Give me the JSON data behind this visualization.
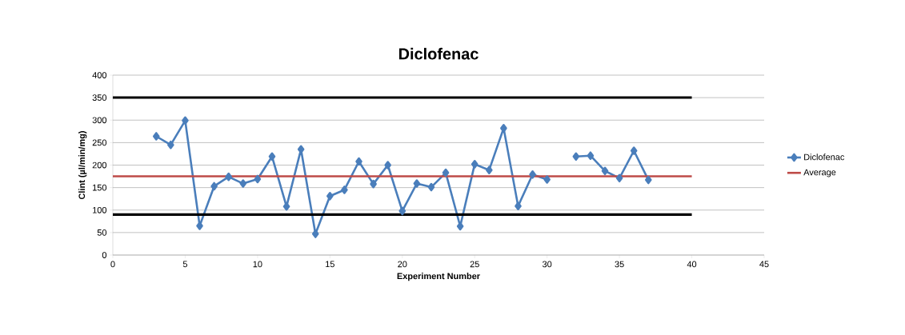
{
  "chart_data": {
    "type": "line",
    "title": "Diclofenac",
    "xlabel": "Experiment Number",
    "ylabel": "Clint (µl/min/mg)",
    "xlim": [
      0,
      45
    ],
    "xticks": [
      0,
      5,
      10,
      15,
      20,
      25,
      30,
      35,
      40,
      45
    ],
    "ylim": [
      0,
      400
    ],
    "yticks": [
      0,
      50,
      100,
      150,
      200,
      250,
      300,
      350,
      400
    ],
    "grid": "y",
    "legend": "right",
    "line_style": "solid",
    "series": [
      {
        "name": "Diclofenac",
        "color": "#4a7ebb",
        "marker": "diamond",
        "x": [
          3,
          4,
          5,
          6,
          7,
          8,
          9,
          10,
          11,
          12,
          13,
          14,
          15,
          16,
          17,
          18,
          19,
          20,
          21,
          22,
          23,
          24,
          25,
          26,
          27,
          28,
          29,
          30,
          31,
          32,
          33,
          34,
          35,
          36,
          37
        ],
        "values": [
          264,
          245,
          299,
          65,
          153,
          174,
          159,
          169,
          219,
          108,
          235,
          47,
          131,
          145,
          208,
          158,
          200,
          98,
          159,
          151,
          183,
          64,
          202,
          189,
          282,
          109,
          179,
          168,
          null,
          219,
          221,
          187,
          171,
          232,
          167
        ]
      },
      {
        "name": "Average",
        "color": "#be4b48",
        "marker": "none",
        "x": [
          0,
          40
        ],
        "values": [
          175,
          175
        ]
      },
      {
        "color": "#000000",
        "marker": "none",
        "x": [
          0,
          40
        ],
        "values": [
          350,
          350
        ]
      },
      {
        "color": "#000000",
        "marker": "none",
        "x": [
          0,
          40
        ],
        "values": [
          90,
          90
        ]
      }
    ]
  }
}
